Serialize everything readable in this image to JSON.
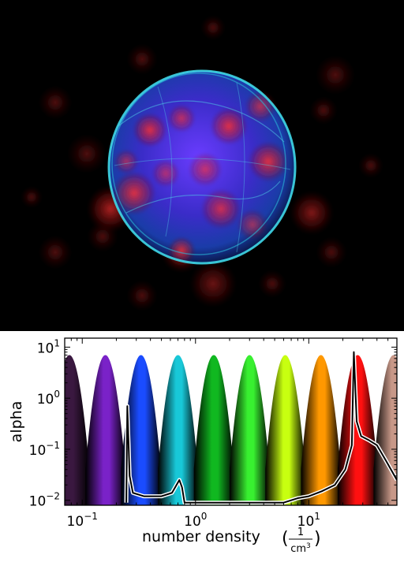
{
  "chart_data": {
    "type": "area",
    "title": "",
    "xlabel": "number density",
    "xunit_numerator": "1",
    "xunit_denominator": "cm",
    "xunit_exponent": "3",
    "ylabel": "alpha",
    "xscale": "log",
    "yscale": "log",
    "xlim": [
      0.07,
      60
    ],
    "ylim": [
      0.008,
      15
    ],
    "xticks": [
      {
        "value": 0.1,
        "base": "10",
        "exp": "−1"
      },
      {
        "value": 1,
        "base": "10",
        "exp": "0"
      },
      {
        "value": 10,
        "base": "10",
        "exp": "1"
      }
    ],
    "yticks": [
      {
        "value": 10,
        "base": "10",
        "exp": "1"
      },
      {
        "value": 1,
        "base": "10",
        "exp": "0"
      },
      {
        "value": 0.1,
        "base": "10",
        "exp": "−1"
      },
      {
        "value": 0.01,
        "base": "10",
        "exp": "−2"
      }
    ],
    "gaussian_peaks": [
      {
        "center": 0.077,
        "peak": 7,
        "color": "#3a1840"
      },
      {
        "center": 0.16,
        "peak": 7,
        "color": "#7a22c8"
      },
      {
        "center": 0.33,
        "peak": 7,
        "color": "#1a4cff"
      },
      {
        "center": 0.7,
        "peak": 7,
        "color": "#18c8d8"
      },
      {
        "center": 1.45,
        "peak": 7,
        "color": "#10b820"
      },
      {
        "center": 3.0,
        "peak": 7,
        "color": "#38f030"
      },
      {
        "center": 6.2,
        "peak": 7,
        "color": "#c8ff10"
      },
      {
        "center": 12.8,
        "peak": 7,
        "color": "#ff9800"
      },
      {
        "center": 27,
        "peak": 7,
        "color": "#ff1010"
      },
      {
        "center": 56,
        "peak": 7,
        "color": "#c89888"
      }
    ],
    "histogram": [
      [
        0.245,
        0.009
      ],
      [
        0.25,
        0.7
      ],
      [
        0.262,
        0.03
      ],
      [
        0.28,
        0.014
      ],
      [
        0.35,
        0.012
      ],
      [
        0.5,
        0.012
      ],
      [
        0.62,
        0.014
      ],
      [
        0.72,
        0.025
      ],
      [
        0.76,
        0.018
      ],
      [
        0.8,
        0.009
      ],
      [
        6.0,
        0.009
      ],
      [
        8.0,
        0.011
      ],
      [
        10,
        0.012
      ],
      [
        13,
        0.015
      ],
      [
        17,
        0.02
      ],
      [
        21,
        0.04
      ],
      [
        24,
        0.12
      ],
      [
        25,
        8
      ],
      [
        26.5,
        0.35
      ],
      [
        29,
        0.18
      ],
      [
        34,
        0.15
      ],
      [
        40,
        0.12
      ],
      [
        48,
        0.06
      ],
      [
        60,
        0.025
      ]
    ],
    "grid": false
  }
}
